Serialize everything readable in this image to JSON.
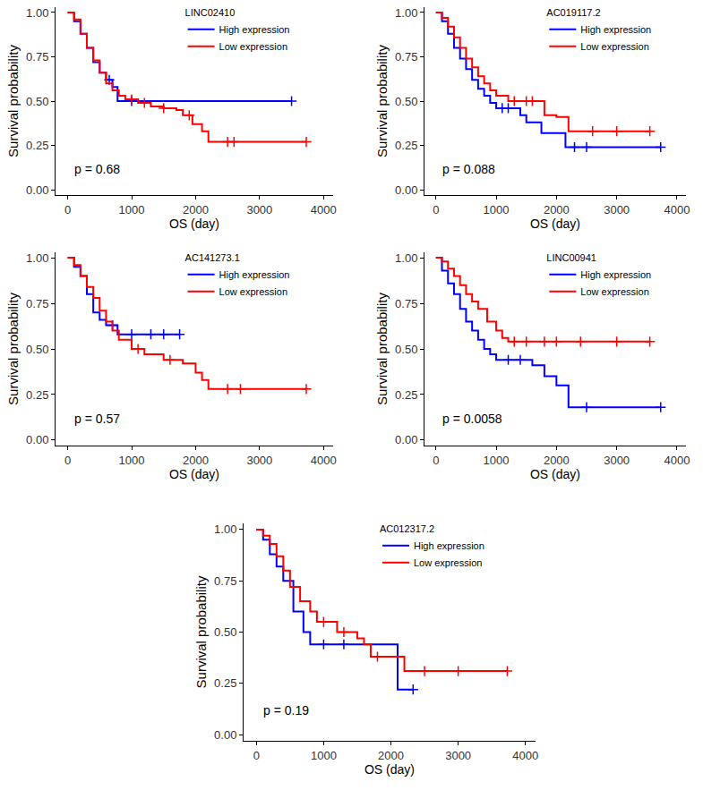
{
  "chart_data": [
    {
      "type": "step",
      "title": "LINC02410",
      "x_label": "OS (day)",
      "y_label": "Survival probability",
      "xlim": [
        -190,
        4150
      ],
      "xticks": [
        0,
        1000,
        2000,
        3000,
        4000
      ],
      "ylim": [
        -0.03,
        1.03
      ],
      "yticks": [
        {
          "value": 0,
          "label": "0.00"
        },
        {
          "value": 0.25,
          "label": "0.25"
        },
        {
          "value": 0.5,
          "label": "0.50"
        },
        {
          "value": 0.75,
          "label": "0.75"
        },
        {
          "value": 1,
          "label": "1.00"
        }
      ],
      "grid": false,
      "legend": "top-right",
      "marker": "cross",
      "annotations": [
        "p = 0.68"
      ],
      "series": [
        {
          "name": "High expression",
          "color": "#0000FF",
          "x": [
            0,
            100,
            200,
            300,
            400,
            500,
            600,
            700,
            780,
            3500
          ],
          "values": [
            1,
            0.95,
            0.88,
            0.8,
            0.72,
            0.66,
            0.62,
            0.58,
            0.5,
            0.5
          ],
          "censored": [
            650,
            1000,
            3500
          ]
        },
        {
          "name": "Low expression",
          "color": "#FF0000",
          "x": [
            0,
            100,
            200,
            300,
            400,
            500,
            600,
            700,
            800,
            900,
            1100,
            1300,
            1500,
            1700,
            1800,
            1950,
            2100,
            2200,
            3730
          ],
          "values": [
            1,
            0.96,
            0.88,
            0.8,
            0.73,
            0.66,
            0.6,
            0.56,
            0.53,
            0.51,
            0.49,
            0.47,
            0.46,
            0.45,
            0.42,
            0.37,
            0.33,
            0.27,
            0.27
          ],
          "censored": [
            1000,
            1200,
            1500,
            1900,
            2500,
            2600,
            3730
          ]
        }
      ]
    },
    {
      "type": "step",
      "title": "AC019117.2",
      "x_label": "OS (day)",
      "y_label": "Survival probability",
      "xlim": [
        -190,
        4150
      ],
      "xticks": [
        0,
        1000,
        2000,
        3000,
        4000
      ],
      "ylim": [
        -0.03,
        1.03
      ],
      "yticks": [
        {
          "value": 0,
          "label": "0.00"
        },
        {
          "value": 0.25,
          "label": "0.25"
        },
        {
          "value": 0.5,
          "label": "0.50"
        },
        {
          "value": 0.75,
          "label": "0.75"
        },
        {
          "value": 1,
          "label": "1.00"
        }
      ],
      "grid": false,
      "legend": "top-right",
      "marker": "cross",
      "annotations": [
        "p = 0.088"
      ],
      "series": [
        {
          "name": "High expression",
          "color": "#0000FF",
          "x": [
            0,
            100,
            200,
            300,
            400,
            500,
            600,
            700,
            800,
            900,
            1000,
            1400,
            1500,
            1750,
            2150,
            3730
          ],
          "values": [
            1,
            0.95,
            0.88,
            0.8,
            0.74,
            0.68,
            0.62,
            0.57,
            0.53,
            0.49,
            0.46,
            0.42,
            0.38,
            0.32,
            0.24,
            0.24
          ],
          "censored": [
            1100,
            1200,
            2300,
            2500,
            3730
          ]
        },
        {
          "name": "Low expression",
          "color": "#FF0000",
          "x": [
            0,
            100,
            200,
            300,
            400,
            500,
            600,
            700,
            800,
            900,
            1000,
            1200,
            1800,
            2000,
            2200,
            3550
          ],
          "values": [
            1,
            0.97,
            0.92,
            0.86,
            0.8,
            0.74,
            0.69,
            0.64,
            0.6,
            0.56,
            0.53,
            0.5,
            0.42,
            0.41,
            0.33,
            0.33
          ],
          "censored": [
            1300,
            1500,
            1600,
            2600,
            3000,
            3550
          ]
        }
      ]
    },
    {
      "type": "step",
      "title": "AC141273.1",
      "x_label": "OS (day)",
      "y_label": "Survival probability",
      "xlim": [
        -190,
        4150
      ],
      "xticks": [
        0,
        1000,
        2000,
        3000,
        4000
      ],
      "ylim": [
        -0.03,
        1.03
      ],
      "yticks": [
        {
          "value": 0,
          "label": "0.00"
        },
        {
          "value": 0.25,
          "label": "0.25"
        },
        {
          "value": 0.5,
          "label": "0.50"
        },
        {
          "value": 0.75,
          "label": "0.75"
        },
        {
          "value": 1,
          "label": "1.00"
        }
      ],
      "grid": false,
      "legend": "top-right",
      "marker": "cross",
      "annotations": [
        "p = 0.57"
      ],
      "series": [
        {
          "name": "High expression",
          "color": "#0000FF",
          "x": [
            0,
            100,
            200,
            300,
            400,
            500,
            600,
            780,
            1750
          ],
          "values": [
            1,
            0.95,
            0.9,
            0.8,
            0.7,
            0.66,
            0.63,
            0.58,
            0.58
          ],
          "censored": [
            700,
            1000,
            1300,
            1500,
            1750
          ]
        },
        {
          "name": "Low expression",
          "color": "#FF0000",
          "x": [
            0,
            100,
            200,
            300,
            400,
            500,
            600,
            700,
            800,
            1000,
            1200,
            1500,
            1800,
            2000,
            2100,
            2200,
            3730
          ],
          "values": [
            1,
            0.96,
            0.9,
            0.84,
            0.78,
            0.71,
            0.65,
            0.6,
            0.55,
            0.5,
            0.47,
            0.44,
            0.42,
            0.37,
            0.33,
            0.28,
            0.28
          ],
          "censored": [
            1100,
            1600,
            2500,
            2700,
            3730
          ]
        }
      ]
    },
    {
      "type": "step",
      "title": "LINC00941",
      "x_label": "OS (day)",
      "y_label": "Survival probability",
      "xlim": [
        -190,
        4150
      ],
      "xticks": [
        0,
        1000,
        2000,
        3000,
        4000
      ],
      "ylim": [
        -0.03,
        1.03
      ],
      "yticks": [
        {
          "value": 0,
          "label": "0.00"
        },
        {
          "value": 0.25,
          "label": "0.25"
        },
        {
          "value": 0.5,
          "label": "0.50"
        },
        {
          "value": 0.75,
          "label": "0.75"
        },
        {
          "value": 1,
          "label": "1.00"
        }
      ],
      "grid": false,
      "legend": "top-right",
      "marker": "cross",
      "annotations": [
        "p = 0.0058"
      ],
      "series": [
        {
          "name": "High expression",
          "color": "#0000FF",
          "x": [
            0,
            100,
            200,
            300,
            400,
            500,
            600,
            700,
            800,
            900,
            1000,
            1600,
            1800,
            2000,
            2200,
            3730
          ],
          "values": [
            1,
            0.93,
            0.86,
            0.8,
            0.72,
            0.65,
            0.6,
            0.55,
            0.5,
            0.47,
            0.44,
            0.41,
            0.35,
            0.3,
            0.18,
            0.18
          ],
          "censored": [
            1200,
            1400,
            2500,
            3730
          ]
        },
        {
          "name": "Low expression",
          "color": "#FF0000",
          "x": [
            0,
            100,
            200,
            300,
            400,
            500,
            600,
            700,
            850,
            1000,
            1100,
            1200,
            3550
          ],
          "values": [
            1,
            0.98,
            0.94,
            0.9,
            0.85,
            0.8,
            0.76,
            0.72,
            0.65,
            0.6,
            0.56,
            0.54,
            0.54
          ],
          "censored": [
            1300,
            1500,
            1800,
            2000,
            2400,
            3000,
            3550
          ]
        }
      ]
    },
    {
      "type": "step",
      "title": "AC012317.2",
      "x_label": "OS (day)",
      "y_label": "Survival probability",
      "xlim": [
        -190,
        4150
      ],
      "xticks": [
        0,
        1000,
        2000,
        3000,
        4000
      ],
      "ylim": [
        -0.03,
        1.03
      ],
      "yticks": [
        {
          "value": 0,
          "label": "0.00"
        },
        {
          "value": 0.25,
          "label": "0.25"
        },
        {
          "value": 0.5,
          "label": "0.50"
        },
        {
          "value": 0.75,
          "label": "0.75"
        },
        {
          "value": 1,
          "label": "1.00"
        }
      ],
      "grid": false,
      "legend": "top-right",
      "marker": "cross",
      "annotations": [
        "p = 0.19"
      ],
      "series": [
        {
          "name": "High expression",
          "color": "#0000FF",
          "x": [
            0,
            100,
            200,
            300,
            400,
            550,
            700,
            800,
            2100,
            2330
          ],
          "values": [
            1,
            0.95,
            0.88,
            0.82,
            0.75,
            0.6,
            0.5,
            0.44,
            0.22,
            0.22
          ],
          "censored": [
            1000,
            1300,
            2330
          ]
        },
        {
          "name": "Low expression",
          "color": "#FF0000",
          "x": [
            0,
            100,
            200,
            300,
            400,
            500,
            650,
            800,
            900,
            1200,
            1500,
            1600,
            1700,
            2200,
            3730
          ],
          "values": [
            1,
            0.97,
            0.93,
            0.87,
            0.8,
            0.72,
            0.65,
            0.6,
            0.55,
            0.5,
            0.47,
            0.44,
            0.38,
            0.31,
            0.31
          ],
          "censored": [
            1000,
            1300,
            1800,
            2500,
            3000,
            3730
          ]
        }
      ]
    }
  ]
}
